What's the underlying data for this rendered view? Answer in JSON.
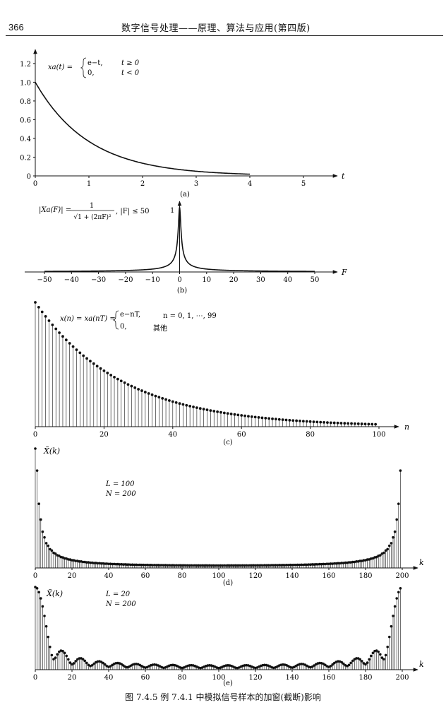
{
  "header": {
    "page_number": "366",
    "book_title": "数字信号处理——原理、算法与应用(第四版)"
  },
  "caption": "图 7.4.5   例 7.4.1 中模拟信号样本的加窗(截断)影响",
  "chart_data": [
    {
      "id": "a",
      "type": "line",
      "panel_label": "(a)",
      "x_axis_label": "t",
      "formula": {
        "lhs": "xa(t) =",
        "case1_expr": "e−t,",
        "case1_cond": "t ≥ 0",
        "case2_expr": "0,",
        "case2_cond": "t < 0"
      },
      "xlim": [
        0,
        5.5
      ],
      "ylim": [
        0,
        1.35
      ],
      "xticks": [
        0,
        1,
        2,
        3,
        4,
        5
      ],
      "yticks": [
        0,
        0.2,
        0.4,
        0.6,
        0.8,
        1.0,
        1.2
      ],
      "ytick_labels": [
        "0",
        "0.2",
        "0.4",
        "0.6",
        "0.8",
        "1.0",
        "1.2"
      ],
      "series": [
        {
          "function": "exp(-t)",
          "x_start": 0,
          "x_end": 4
        }
      ]
    },
    {
      "id": "b",
      "type": "line",
      "panel_label": "(b)",
      "x_axis_label": "F",
      "formula": {
        "lhs": "|Xa(F)| =",
        "num": "1",
        "den": "√1 + (2πF)²",
        "cond": ",   |F| ≤ 50",
        "peak_label": "1"
      },
      "xlim": [
        -55,
        55
      ],
      "ylim": [
        0,
        1.1
      ],
      "xticks": [
        -50,
        -40,
        -30,
        -20,
        -10,
        0,
        10,
        20,
        30,
        40,
        50
      ],
      "series": [
        {
          "function": "1/sqrt(1+(2*pi*F)^2)",
          "x_start": -50,
          "x_end": 50
        }
      ]
    },
    {
      "id": "c",
      "type": "stem",
      "panel_label": "(c)",
      "x_axis_label": "n",
      "formula": {
        "lhs": "x(n) = xa(nT) =",
        "case1_expr": "e−nT,",
        "case1_cond": "n = 0, 1, ⋯, 99",
        "case2_expr": "0,",
        "case2_cond": "其他"
      },
      "xlim": [
        0,
        105
      ],
      "ylim": [
        0,
        1.05
      ],
      "xticks": [
        0,
        20,
        40,
        60,
        80,
        100
      ],
      "sample_count": 100,
      "series": [
        {
          "function": "exp(-0.04 n)",
          "n_start": 0,
          "n_end": 99
        }
      ]
    },
    {
      "id": "d",
      "type": "stem",
      "panel_label": "(d)",
      "x_axis_label": "k",
      "y_axis_label": "X̃(k)",
      "params": [
        "L = 100",
        "N = 200"
      ],
      "xlim": [
        0,
        210
      ],
      "ylim": [
        0,
        1.05
      ],
      "xticks": [
        0,
        20,
        40,
        60,
        80,
        100,
        120,
        140,
        160,
        180,
        200
      ],
      "sample_count": 200,
      "series": [
        {
          "function": "|DFT_200 of 100 samples of exp(-0.04 n)|",
          "k_start": 0,
          "k_end": 199
        }
      ]
    },
    {
      "id": "e",
      "type": "stem",
      "panel_label": "(e)",
      "x_axis_label": "k",
      "y_axis_label": "X̃(k)",
      "params": [
        "L = 20",
        "N = 200"
      ],
      "xlim": [
        0,
        210
      ],
      "ylim": [
        0,
        1.05
      ],
      "xticks": [
        0,
        20,
        40,
        60,
        80,
        100,
        120,
        140,
        160,
        180,
        200
      ],
      "sample_count": 200,
      "series": [
        {
          "function": "|DFT_200 of 20 samples of exp(-0.04 n)|",
          "k_start": 0,
          "k_end": 199
        }
      ]
    }
  ]
}
